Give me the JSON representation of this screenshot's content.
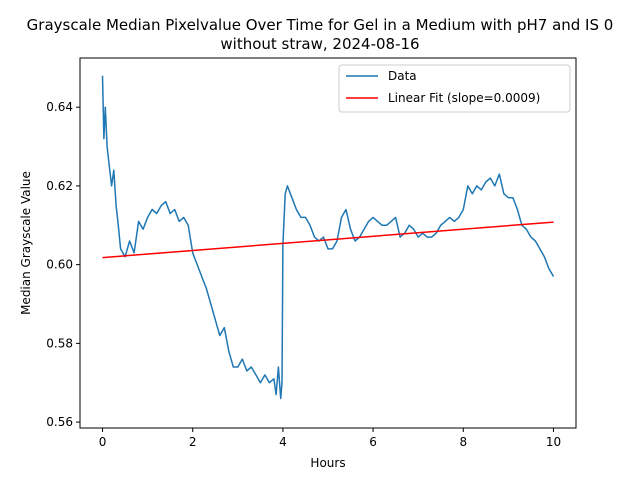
{
  "chart_data": {
    "type": "line",
    "title_line1": "Grayscale Median Pixelvalue Over Time for Gel in a Medium with pH7 and IS 0",
    "title_line2": "without straw, 2024-08-16",
    "xlabel": "Hours",
    "ylabel": "Median Grayscale Value",
    "xlim": [
      -0.5,
      10.5
    ],
    "ylim": [
      0.5585,
      0.6525
    ],
    "xticks": [
      0,
      2,
      4,
      6,
      8,
      10
    ],
    "xtick_labels": [
      "0",
      "2",
      "4",
      "6",
      "8",
      "10"
    ],
    "yticks": [
      0.56,
      0.58,
      0.6,
      0.62,
      0.64
    ],
    "ytick_labels": [
      "0.56",
      "0.58",
      "0.60",
      "0.62",
      "0.64"
    ],
    "grid": false,
    "legend_position": "top-right",
    "series": [
      {
        "name": "Data",
        "color": "#1f77b4",
        "x": [
          0.0,
          0.03,
          0.06,
          0.1,
          0.15,
          0.2,
          0.25,
          0.3,
          0.35,
          0.4,
          0.5,
          0.6,
          0.7,
          0.8,
          0.9,
          1.0,
          1.1,
          1.2,
          1.3,
          1.4,
          1.5,
          1.6,
          1.7,
          1.8,
          1.9,
          2.0,
          2.1,
          2.2,
          2.3,
          2.4,
          2.5,
          2.6,
          2.7,
          2.8,
          2.9,
          3.0,
          3.1,
          3.2,
          3.3,
          3.4,
          3.5,
          3.6,
          3.7,
          3.8,
          3.85,
          3.9,
          3.95,
          3.98,
          4.0,
          4.05,
          4.1,
          4.2,
          4.3,
          4.4,
          4.5,
          4.6,
          4.7,
          4.8,
          4.9,
          5.0,
          5.1,
          5.2,
          5.3,
          5.4,
          5.5,
          5.6,
          5.7,
          5.8,
          5.9,
          6.0,
          6.1,
          6.2,
          6.3,
          6.4,
          6.5,
          6.6,
          6.7,
          6.8,
          6.9,
          7.0,
          7.1,
          7.2,
          7.3,
          7.4,
          7.5,
          7.6,
          7.7,
          7.8,
          7.9,
          8.0,
          8.1,
          8.2,
          8.3,
          8.4,
          8.5,
          8.6,
          8.7,
          8.8,
          8.9,
          9.0,
          9.1,
          9.2,
          9.3,
          9.4,
          9.5,
          9.6,
          9.7,
          9.8,
          9.9,
          10.0
        ],
        "y": [
          0.648,
          0.632,
          0.64,
          0.63,
          0.625,
          0.62,
          0.624,
          0.615,
          0.61,
          0.604,
          0.602,
          0.606,
          0.603,
          0.611,
          0.609,
          0.612,
          0.614,
          0.613,
          0.615,
          0.616,
          0.613,
          0.614,
          0.611,
          0.612,
          0.61,
          0.603,
          0.6,
          0.597,
          0.594,
          0.59,
          0.586,
          0.582,
          0.584,
          0.578,
          0.574,
          0.574,
          0.576,
          0.573,
          0.574,
          0.572,
          0.57,
          0.572,
          0.57,
          0.571,
          0.567,
          0.574,
          0.566,
          0.57,
          0.605,
          0.618,
          0.62,
          0.617,
          0.614,
          0.612,
          0.612,
          0.61,
          0.607,
          0.606,
          0.607,
          0.604,
          0.604,
          0.606,
          0.612,
          0.614,
          0.609,
          0.606,
          0.607,
          0.609,
          0.611,
          0.612,
          0.611,
          0.61,
          0.61,
          0.611,
          0.612,
          0.607,
          0.608,
          0.61,
          0.609,
          0.607,
          0.608,
          0.607,
          0.607,
          0.608,
          0.61,
          0.611,
          0.612,
          0.611,
          0.612,
          0.614,
          0.62,
          0.618,
          0.62,
          0.619,
          0.621,
          0.622,
          0.62,
          0.623,
          0.618,
          0.617,
          0.617,
          0.614,
          0.61,
          0.609,
          0.607,
          0.606,
          0.604,
          0.602,
          0.599,
          0.597
        ]
      },
      {
        "name": "Linear Fit (slope=0.0009)",
        "color": "#ff0000",
        "x": [
          0.0,
          10.0
        ],
        "y": [
          0.6018,
          0.6108
        ]
      }
    ]
  }
}
